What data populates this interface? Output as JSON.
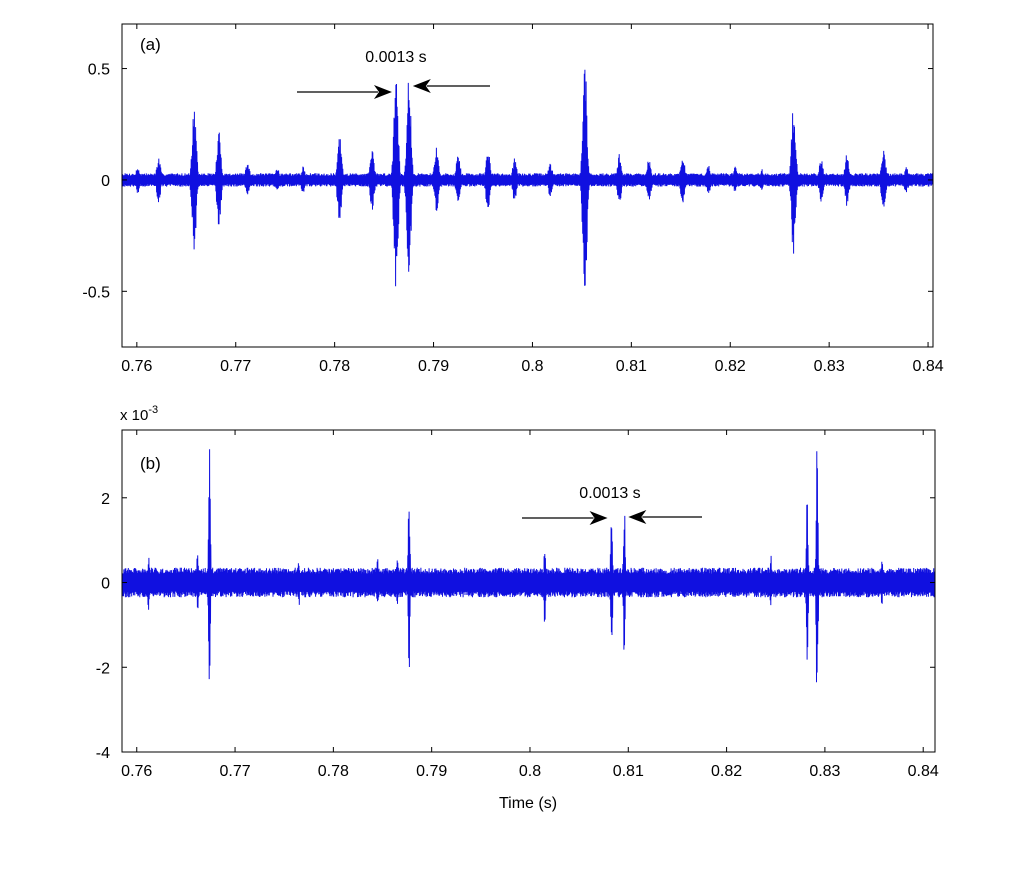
{
  "chart_data": [
    {
      "type": "line",
      "panel_label": "(a)",
      "xlabel": "",
      "ylabel": "",
      "xlim": [
        0.7585,
        0.8405
      ],
      "ylim": [
        -0.75,
        0.7
      ],
      "xticks": [
        0.76,
        0.77,
        0.78,
        0.79,
        0.8,
        0.81,
        0.82,
        0.83,
        0.84
      ],
      "xtick_labels": [
        "0.76",
        "0.77",
        "0.78",
        "0.79",
        "0.8",
        "0.81",
        "0.82",
        "0.83",
        "0.84"
      ],
      "yticks": [
        -0.5,
        0,
        0.5
      ],
      "ytick_labels": [
        "-0.5",
        "0",
        "0.5"
      ],
      "grid": false,
      "color": "#1010e0",
      "annotation": {
        "text": "0.0013 s",
        "left_peak_x": 0.7862,
        "right_peak_x": 0.7875
      },
      "envelope": {
        "baseline_amplitude": 0.03,
        "burst_peaks": [
          {
            "x": 0.7601,
            "amplitude": 0.06
          },
          {
            "x": 0.7622,
            "amplitude": 0.1
          },
          {
            "x": 0.7658,
            "amplitude": 0.33
          },
          {
            "x": 0.7683,
            "amplitude": 0.22
          },
          {
            "x": 0.7712,
            "amplitude": 0.08
          },
          {
            "x": 0.7742,
            "amplitude": 0.06
          },
          {
            "x": 0.7768,
            "amplitude": 0.06
          },
          {
            "x": 0.7805,
            "amplitude": 0.2
          },
          {
            "x": 0.7838,
            "amplitude": 0.14
          },
          {
            "x": 0.7862,
            "amplitude": 0.53
          },
          {
            "x": 0.7875,
            "amplitude": 0.5
          },
          {
            "x": 0.7903,
            "amplitude": 0.15
          },
          {
            "x": 0.7925,
            "amplitude": 0.12
          },
          {
            "x": 0.7955,
            "amplitude": 0.14
          },
          {
            "x": 0.7982,
            "amplitude": 0.1
          },
          {
            "x": 0.8018,
            "amplitude": 0.08
          },
          {
            "x": 0.8053,
            "amplitude": 0.56
          },
          {
            "x": 0.8088,
            "amplitude": 0.12
          },
          {
            "x": 0.8118,
            "amplitude": 0.1
          },
          {
            "x": 0.8152,
            "amplitude": 0.12
          },
          {
            "x": 0.8178,
            "amplitude": 0.07
          },
          {
            "x": 0.8205,
            "amplitude": 0.06
          },
          {
            "x": 0.8232,
            "amplitude": 0.05
          },
          {
            "x": 0.8264,
            "amplitude": 0.34
          },
          {
            "x": 0.8292,
            "amplitude": 0.1
          },
          {
            "x": 0.8318,
            "amplitude": 0.12
          },
          {
            "x": 0.8355,
            "amplitude": 0.15
          },
          {
            "x": 0.8378,
            "amplitude": 0.06
          }
        ]
      }
    },
    {
      "type": "line",
      "panel_label": "(b)",
      "xlabel": "Time (s)",
      "ylabel": "",
      "y_scale_label": "x 10",
      "y_scale_exponent": "-3",
      "xlim": [
        0.7585,
        0.8412
      ],
      "ylim": [
        -4,
        3.6
      ],
      "xticks": [
        0.76,
        0.77,
        0.78,
        0.79,
        0.8,
        0.81,
        0.82,
        0.83,
        0.84
      ],
      "xtick_labels": [
        "0.76",
        "0.77",
        "0.78",
        "0.79",
        "0.8",
        "0.81",
        "0.82",
        "0.83",
        "0.84"
      ],
      "yticks": [
        -4,
        -2,
        0,
        2
      ],
      "ytick_labels": [
        "-4",
        "-2",
        "0",
        "2"
      ],
      "grid": false,
      "color": "#1010e0",
      "annotation": {
        "text": "0.0013 s",
        "left_peak_x": 0.8083,
        "right_peak_x": 0.8096
      },
      "envelope": {
        "baseline_amplitude": 0.35,
        "burst_peaks": [
          {
            "x": 0.7674,
            "amplitude": 3.3
          },
          {
            "x": 0.7662,
            "amplitude": 0.8
          },
          {
            "x": 0.7877,
            "amplitude": 2.3
          },
          {
            "x": 0.7865,
            "amplitude": 0.8
          },
          {
            "x": 0.8015,
            "amplitude": 1.0
          },
          {
            "x": 0.8083,
            "amplitude": 1.9
          },
          {
            "x": 0.8096,
            "amplitude": 1.9
          },
          {
            "x": 0.8292,
            "amplitude": 3.3
          },
          {
            "x": 0.8282,
            "amplitude": 2.2
          },
          {
            "x": 0.7612,
            "amplitude": 0.7
          },
          {
            "x": 0.7765,
            "amplitude": 0.6
          },
          {
            "x": 0.7845,
            "amplitude": 0.6
          },
          {
            "x": 0.8245,
            "amplitude": 0.7
          },
          {
            "x": 0.8358,
            "amplitude": 0.6
          }
        ]
      }
    }
  ]
}
